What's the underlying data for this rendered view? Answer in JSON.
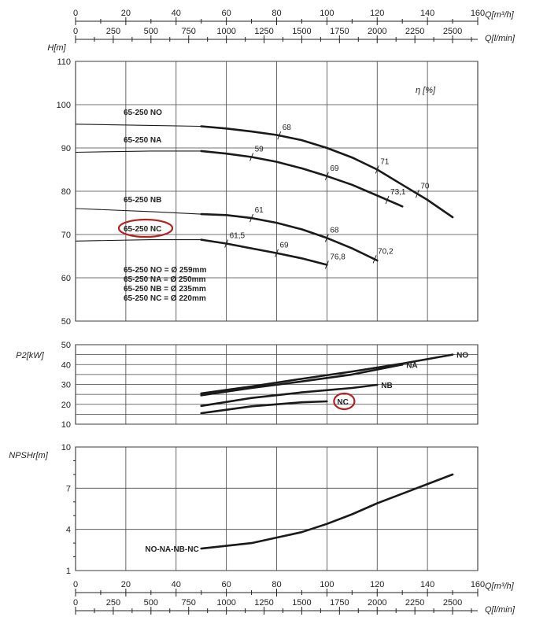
{
  "chart_data": [
    {
      "type": "line",
      "id": "head",
      "ylabel": "H[m]",
      "ylim": [
        50,
        110
      ],
      "yticks": [
        "50",
        "60",
        "70",
        "80",
        "90",
        "100",
        "110"
      ],
      "xlim_m3h": [
        0,
        160
      ],
      "series": [
        {
          "name": "65-250 NO",
          "points": [
            [
              0,
              95.5
            ],
            [
              30,
              95.2
            ],
            [
              50,
              95.0
            ],
            [
              60,
              94.5
            ],
            [
              70,
              93.8
            ],
            [
              80,
              93.0
            ],
            [
              90,
              91.8
            ],
            [
              100,
              90.0
            ],
            [
              110,
              87.8
            ],
            [
              120,
              85.0
            ],
            [
              130,
              81.5
            ],
            [
              140,
              78.0
            ],
            [
              150,
              74.0
            ]
          ]
        },
        {
          "name": "65-250 NA",
          "points": [
            [
              0,
              89.0
            ],
            [
              30,
              89.3
            ],
            [
              50,
              89.3
            ],
            [
              60,
              88.7
            ],
            [
              70,
              87.9
            ],
            [
              80,
              86.8
            ],
            [
              90,
              85.3
            ],
            [
              100,
              83.5
            ],
            [
              110,
              81.5
            ],
            [
              120,
              79.0
            ],
            [
              130,
              76.5
            ]
          ]
        },
        {
          "name": "65-250 NB",
          "points": [
            [
              0,
              76.0
            ],
            [
              30,
              75.3
            ],
            [
              50,
              74.7
            ],
            [
              60,
              74.5
            ],
            [
              70,
              73.8
            ],
            [
              80,
              72.7
            ],
            [
              90,
              71.2
            ],
            [
              100,
              69.2
            ],
            [
              110,
              66.8
            ],
            [
              120,
              64.0
            ]
          ]
        },
        {
          "name": "65-250 NC",
          "points": [
            [
              0,
              68.5
            ],
            [
              30,
              68.8
            ],
            [
              50,
              68.8
            ],
            [
              60,
              67.9
            ],
            [
              70,
              66.8
            ],
            [
              80,
              65.7
            ],
            [
              90,
              64.5
            ],
            [
              100,
              63.0
            ]
          ]
        }
      ],
      "efficiency_marks": [
        {
          "label": "68",
          "q": 81,
          "series": "65-250 NO"
        },
        {
          "label": "71",
          "q": 120,
          "series": "65-250 NO"
        },
        {
          "label": "70",
          "q": 136,
          "series": "65-250 NO"
        },
        {
          "label": "59",
          "q": 70,
          "series": "65-250 NA"
        },
        {
          "label": "69",
          "q": 100,
          "series": "65-250 NA"
        },
        {
          "label": "73,1",
          "q": 124,
          "series": "65-250 NA"
        },
        {
          "label": "61",
          "q": 70,
          "series": "65-250 NB"
        },
        {
          "label": "68",
          "q": 100,
          "series": "65-250 NB"
        },
        {
          "label": "70,2",
          "q": 119,
          "series": "65-250 NB"
        },
        {
          "label": "61,5",
          "q": 60,
          "series": "65-250 NC"
        },
        {
          "label": "69",
          "q": 80,
          "series": "65-250 NC"
        },
        {
          "label": "76,8",
          "q": 100,
          "series": "65-250 NC"
        }
      ],
      "efficiency_title": "η [%]",
      "highlight": "65-250 NC",
      "diameter_legend": [
        "65-250 NO = Ø 259mm",
        "65-250 NA = Ø 250mm",
        "65-250 NB = Ø 235mm",
        "65-250 NC = Ø 220mm"
      ]
    },
    {
      "type": "line",
      "id": "power",
      "ylabel": "P2[kW]",
      "ylim": [
        10,
        50
      ],
      "yticks": [
        "10",
        "20",
        "30",
        "40",
        "50"
      ],
      "series": [
        {
          "name": "NO",
          "points": [
            [
              50,
              25.5
            ],
            [
              70,
              29
            ],
            [
              90,
              32.8
            ],
            [
              110,
              36.5
            ],
            [
              130,
              40.5
            ],
            [
              150,
              45
            ]
          ]
        },
        {
          "name": "NA",
          "points": [
            [
              50,
              24.5
            ],
            [
              70,
              28.2
            ],
            [
              90,
              31.5
            ],
            [
              110,
              35
            ],
            [
              130,
              40
            ]
          ]
        },
        {
          "name": "NB",
          "points": [
            [
              50,
              19.2
            ],
            [
              70,
              23.2
            ],
            [
              90,
              26
            ],
            [
              110,
              28.2
            ],
            [
              120,
              29.8
            ]
          ]
        },
        {
          "name": "NC",
          "points": [
            [
              50,
              15.5
            ],
            [
              70,
              19
            ],
            [
              90,
              21
            ],
            [
              100,
              21.5
            ]
          ]
        }
      ],
      "highlight": "NC"
    },
    {
      "type": "line",
      "id": "npsh",
      "ylabel": "NPSHr[m]",
      "ylim": [
        1,
        10
      ],
      "yticks": [
        "1",
        "4",
        "7",
        "10"
      ],
      "series": [
        {
          "name": "NO-NA-NB-NC",
          "points": [
            [
              50,
              2.6
            ],
            [
              70,
              3.0
            ],
            [
              80,
              3.4
            ],
            [
              90,
              3.8
            ],
            [
              100,
              4.4
            ],
            [
              110,
              5.1
            ],
            [
              120,
              5.9
            ],
            [
              130,
              6.6
            ],
            [
              140,
              7.3
            ],
            [
              150,
              8.0
            ]
          ]
        }
      ]
    }
  ],
  "axes": {
    "q_m3h_label": "Q[m³/h]",
    "q_lmin_label": "Q[l/min]",
    "q_m3h_ticks": [
      "0",
      "20",
      "40",
      "60",
      "80",
      "100",
      "120",
      "140",
      "160"
    ],
    "q_lmin_ticks": [
      "0",
      "250",
      "500",
      "750",
      "1000",
      "1250",
      "1500",
      "1750",
      "2000",
      "2250",
      "2500"
    ]
  }
}
